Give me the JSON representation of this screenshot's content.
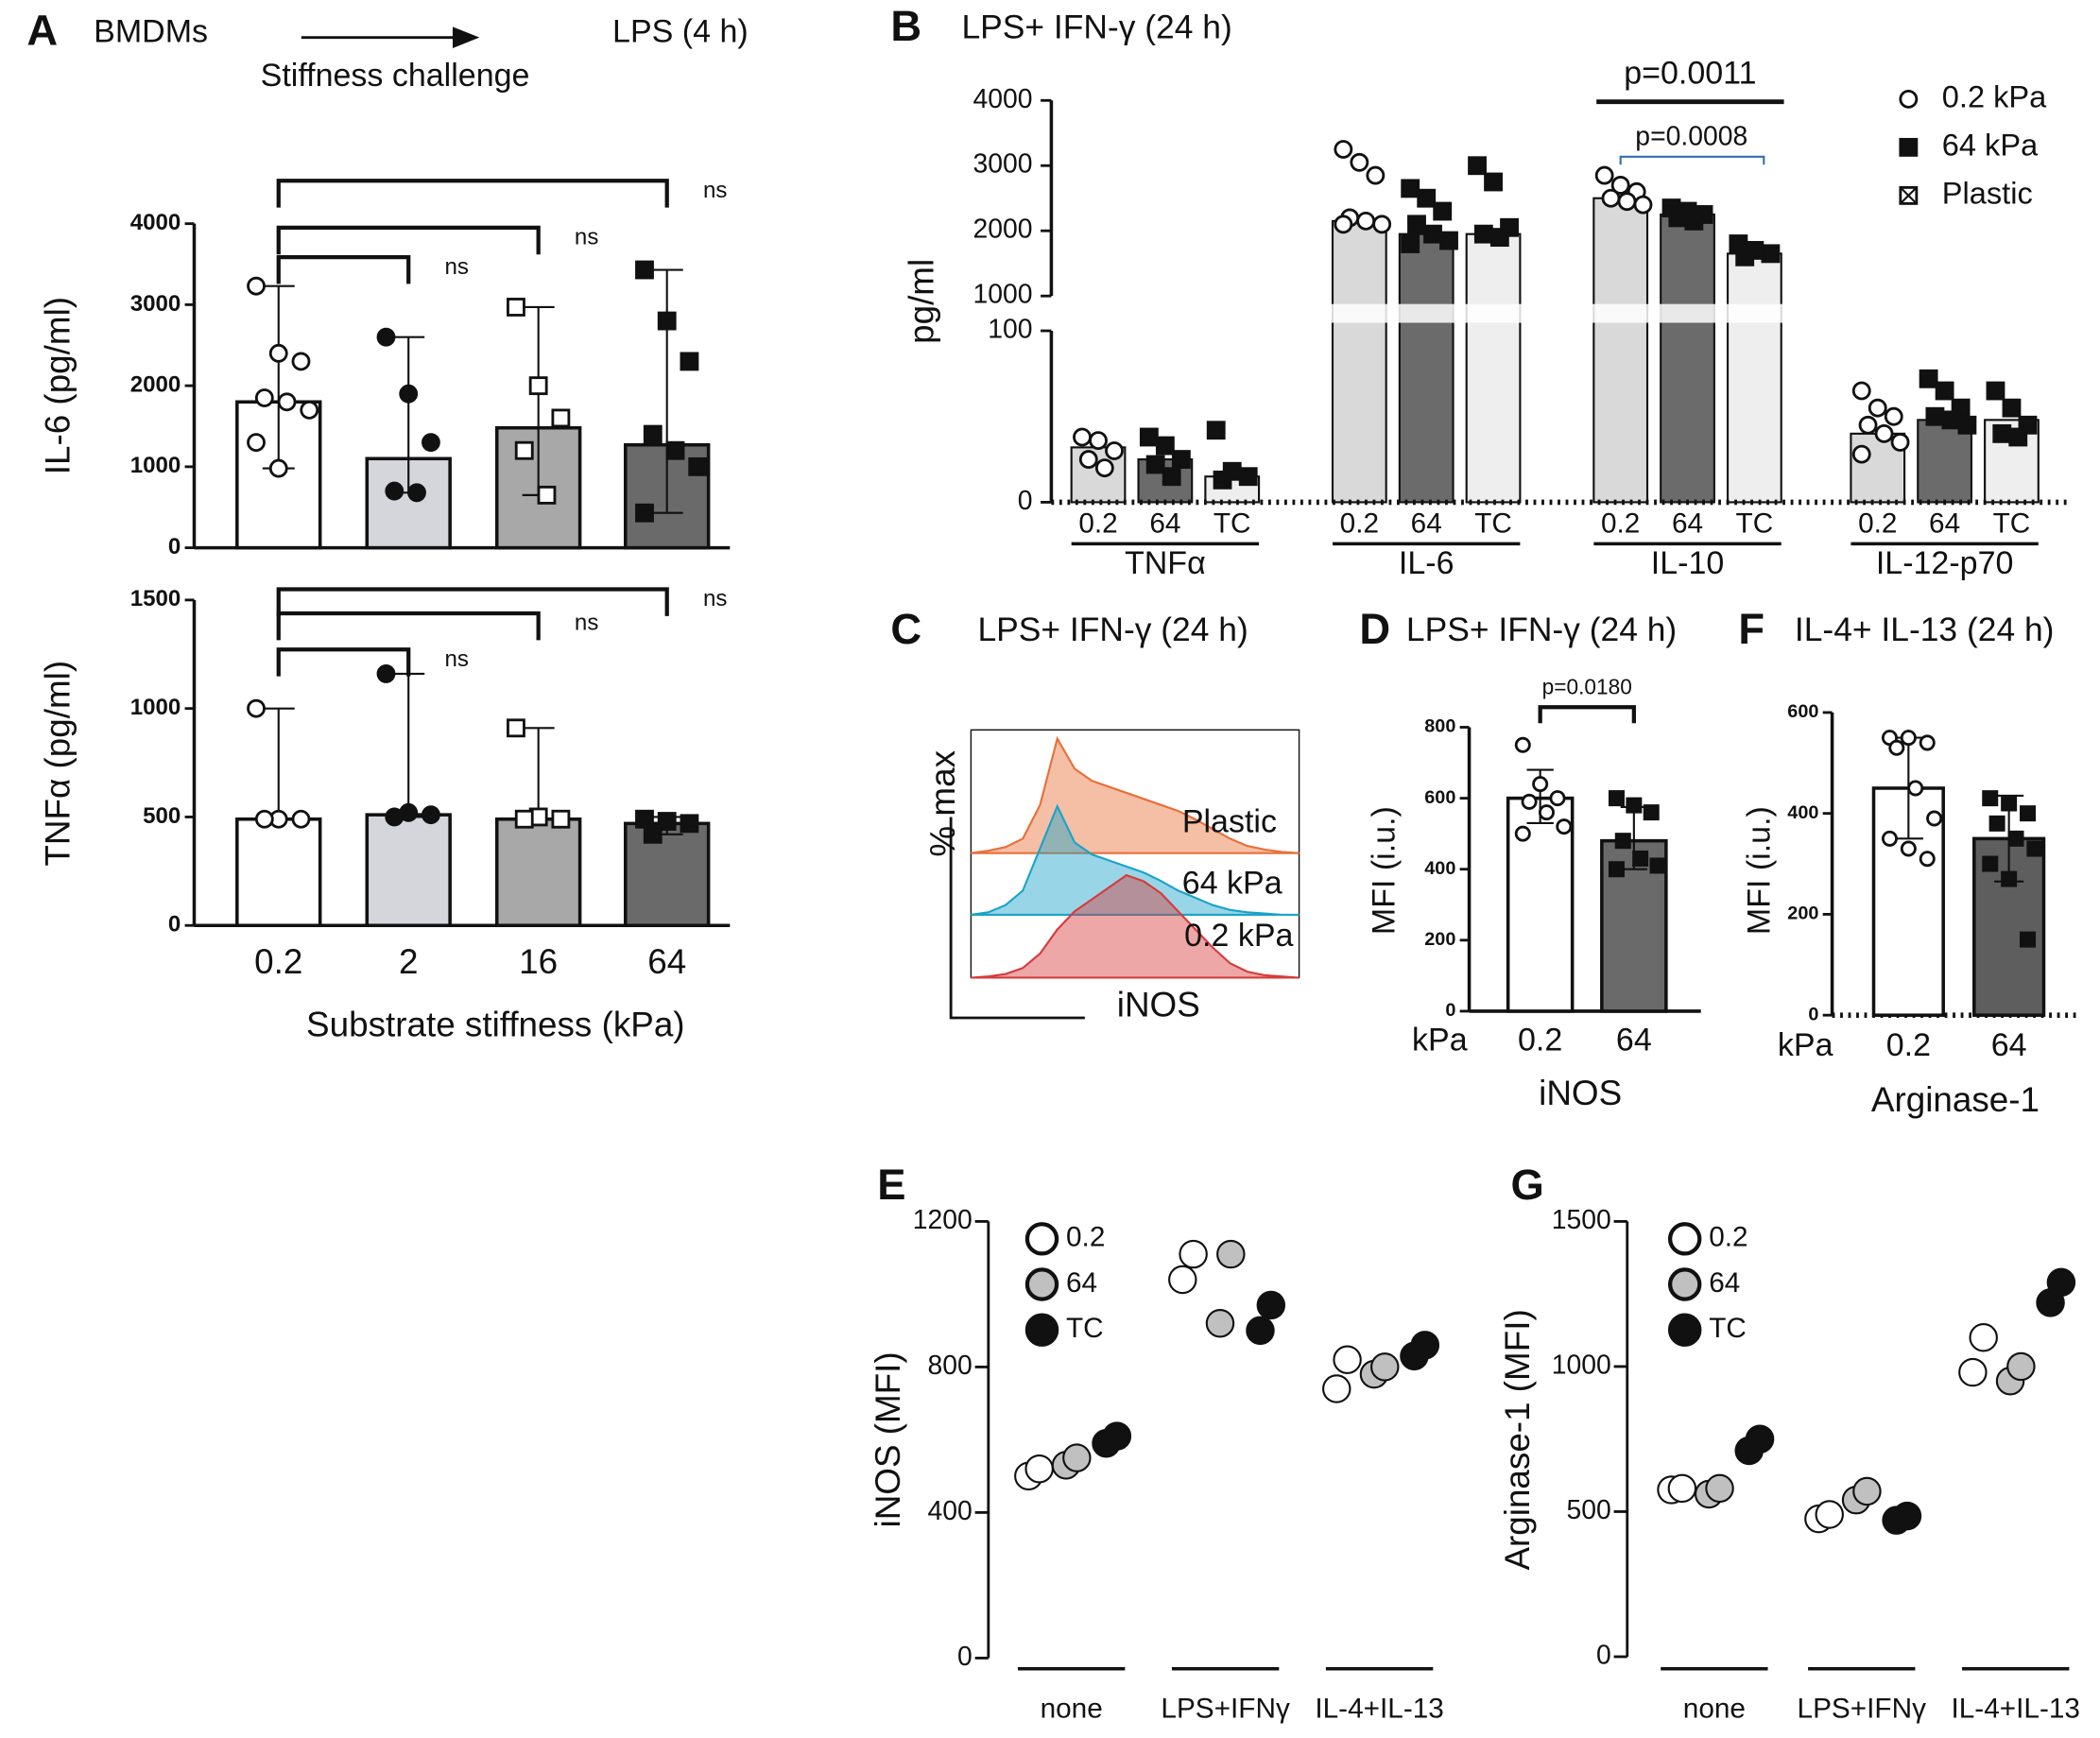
{
  "chart_data": [
    {
      "type": "bar",
      "panel": "A",
      "header": [
        "BMDMs",
        "Stiffness challenge",
        "LPS (4 h)"
      ],
      "ylabel": "IL-6 (pg/ml)",
      "ylim": [
        0,
        4000
      ],
      "yticks": [
        0,
        1000,
        2000,
        3000,
        4000
      ],
      "values": [
        1800,
        1100,
        1480,
        1270
      ],
      "error_low": [
        980,
        680,
        650,
        430
      ],
      "error_high": [
        3230,
        2600,
        2970,
        3430
      ],
      "points": [
        [
          3230,
          2400,
          2300,
          1850,
          1800,
          1700,
          1300,
          980
        ],
        [
          2600,
          1900,
          1300,
          700,
          680
        ],
        [
          2970,
          2000,
          1600,
          1200,
          650
        ],
        [
          3430,
          2800,
          2300,
          1400,
          1200,
          1000,
          430
        ]
      ],
      "colors": [
        "#ffffff",
        "#d4d6dc",
        "#a8a8a8",
        "#6a6a6a"
      ],
      "markers": [
        "circle-open",
        "circle-filled",
        "square-open",
        "square-filled"
      ],
      "comparisons": [
        {
          "between": [
            "0.2",
            "2"
          ],
          "label": "ns"
        },
        {
          "between": [
            "0.2",
            "16"
          ],
          "label": "ns"
        },
        {
          "between": [
            "0.2",
            "64"
          ],
          "label": "ns"
        }
      ]
    },
    {
      "type": "bar",
      "ylabel": "TNFα (pg/ml)",
      "xlabel": "Substrate stiffness (kPa)",
      "categories": [
        "0.2",
        "2",
        "16",
        "64"
      ],
      "ylim": [
        0,
        1500
      ],
      "yticks": [
        0,
        500,
        1000,
        1500
      ],
      "values": [
        490,
        510,
        490,
        470
      ],
      "error_low": [
        490,
        500,
        490,
        420
      ],
      "error_high": [
        1000,
        1160,
        910,
        500
      ],
      "points": [
        [
          1000,
          490,
          490,
          490
        ],
        [
          1160,
          520,
          510,
          500
        ],
        [
          910,
          500,
          490,
          490
        ],
        [
          490,
          480,
          470,
          420
        ]
      ],
      "colors": [
        "#ffffff",
        "#d4d6dc",
        "#a8a8a8",
        "#6a6a6a"
      ],
      "markers": [
        "circle-open",
        "circle-filled",
        "square-open",
        "square-filled"
      ],
      "comparisons": [
        {
          "between": [
            "0.2",
            "2"
          ],
          "label": "ns"
        },
        {
          "between": [
            "0.2",
            "16"
          ],
          "label": "ns"
        },
        {
          "between": [
            "0.2",
            "64"
          ],
          "label": "ns"
        }
      ]
    },
    {
      "type": "grouped_bar_broken",
      "panel": "B",
      "title": "LPS+ IFN-γ (24 h)",
      "ylabel": "pg/ml",
      "groups": [
        "TNFα",
        "IL-6",
        "IL-10",
        "IL-12-p70"
      ],
      "subcategories": [
        "0.2",
        "64",
        "TC"
      ],
      "ylim": [
        0,
        4000
      ],
      "axis_break": [
        100,
        1000
      ],
      "yticks": [
        0,
        100,
        1000,
        2000,
        3000,
        4000
      ],
      "series": [
        {
          "name": "0.2 kPa",
          "color": "#d9d9d9",
          "marker": "circle-open",
          "legend_marker": "circle-open",
          "values": [
            32,
            2150,
            2500,
            40
          ],
          "points": [
            [
              38,
              36,
              30,
              25,
              20
            ],
            [
              3250,
              3050,
              2850,
              2200,
              2150,
              2100,
              2100
            ],
            [
              2850,
              2700,
              2600,
              2500,
              2450,
              2400
            ],
            [
              65,
              55,
              50,
              45,
              40,
              35,
              28
            ]
          ]
        },
        {
          "name": "64 kPa",
          "color": "#6b6b6b",
          "marker": "square-filled",
          "legend_marker": "square-filled",
          "values": [
            25,
            1950,
            2250,
            48
          ],
          "points": [
            [
              38,
              33,
              25,
              22,
              15
            ],
            [
              2650,
              2500,
              2300,
              2100,
              1950,
              1850,
              1800
            ],
            [
              2350,
              2300,
              2250,
              2200,
              2150
            ],
            [
              72,
              65,
              55,
              50,
              48,
              45
            ]
          ]
        },
        {
          "name": "Plastic",
          "color": "#eeeeee",
          "marker": "square-filled",
          "legend_marker": "box-cross",
          "values": [
            15,
            1950,
            1650,
            48
          ],
          "points": [
            [
              42,
              18,
              15,
              13
            ],
            [
              3000,
              2750,
              2050,
              1950,
              1900
            ],
            [
              1800,
              1700,
              1650,
              1600
            ],
            [
              65,
              55,
              45,
              40,
              38
            ]
          ]
        }
      ],
      "annotations": [
        {
          "text": "p=0.0011",
          "color": "#111111"
        },
        {
          "text": "p=0.0008",
          "color": "#2f6fb5"
        }
      ]
    },
    {
      "type": "histogram_overlay",
      "panel": "C",
      "title": "LPS+ IFN-γ (24 h)",
      "xlabel": "iNOS",
      "ylabel": "% max",
      "ylim": [
        0,
        100
      ],
      "series": [
        {
          "name": "Plastic",
          "color": "#e8703a",
          "values": [
            0,
            2,
            5,
            12,
            40,
            95,
            70,
            60,
            55,
            50,
            45,
            40,
            35,
            28,
            20,
            12,
            6,
            3,
            1,
            0
          ]
        },
        {
          "name": "64 kPa",
          "color": "#1aa3c9",
          "values": [
            0,
            2,
            8,
            20,
            55,
            90,
            60,
            50,
            45,
            40,
            35,
            28,
            20,
            14,
            8,
            4,
            2,
            1,
            0,
            0
          ]
        },
        {
          "name": "0.2 kPa",
          "color": "#d63c3c",
          "values": [
            0,
            1,
            3,
            8,
            20,
            40,
            55,
            65,
            75,
            85,
            80,
            70,
            55,
            40,
            25,
            12,
            5,
            2,
            1,
            0
          ]
        }
      ]
    },
    {
      "type": "bar",
      "panel": "D",
      "title": "LPS+ IFN-γ (24 h)",
      "ylabel": "MFI (i.u.)",
      "x_prefix": "kPa",
      "categories": [
        "0.2",
        "64"
      ],
      "xlabel": "iNOS",
      "ylim": [
        0,
        800
      ],
      "yticks": [
        0,
        200,
        400,
        600,
        800
      ],
      "values": [
        600,
        480
      ],
      "error_low": [
        530,
        400
      ],
      "error_high": [
        680,
        575
      ],
      "points": [
        [
          750,
          640,
          600,
          590,
          560,
          520,
          500
        ],
        [
          600,
          580,
          560,
          480,
          430,
          410,
          400
        ]
      ],
      "colors": [
        "#ffffff",
        "#6a6a6a"
      ],
      "markers": [
        "circle-open",
        "square-filled"
      ],
      "comparisons": [
        {
          "between": [
            "0.2",
            "64"
          ],
          "label": "p=0.0180"
        }
      ]
    },
    {
      "type": "bar",
      "panel": "F",
      "title": "IL-4+ IL-13 (24 h)",
      "ylabel": "MFI (i.u.)",
      "x_prefix": "kPa",
      "categories": [
        "0.2",
        "64"
      ],
      "xlabel": "Arginase-1",
      "ylim": [
        0,
        600
      ],
      "yticks": [
        0,
        200,
        400,
        600
      ],
      "values": [
        450,
        350
      ],
      "error_low": [
        350,
        265
      ],
      "error_high": [
        550,
        435
      ],
      "points": [
        [
          550,
          550,
          540,
          530,
          450,
          390,
          350,
          330,
          310
        ],
        [
          430,
          420,
          400,
          380,
          350,
          330,
          300,
          270,
          150
        ]
      ],
      "colors": [
        "#ffffff",
        "#5e5e5e"
      ],
      "markers": [
        "circle-open",
        "square-filled"
      ]
    },
    {
      "type": "dot",
      "panel": "E",
      "ylabel": "iNOS (MFI)",
      "groups": [
        "none",
        "LPS+IFNγ",
        "IL-4+IL-13"
      ],
      "ylim": [
        0,
        1200
      ],
      "yticks": [
        0,
        400,
        800,
        1200
      ],
      "series": [
        {
          "name": "0.2",
          "color": "#ffffff",
          "values": [
            [
              500,
              520
            ],
            [
              1040,
              1110
            ],
            [
              740,
              820
            ]
          ]
        },
        {
          "name": "64",
          "color": "#c0c0c0",
          "values": [
            [
              530,
              550
            ],
            [
              920,
              1110
            ],
            [
              780,
              800
            ]
          ]
        },
        {
          "name": "TC",
          "color": "#111111",
          "values": [
            [
              590,
              610
            ],
            [
              900,
              970
            ],
            [
              830,
              860
            ]
          ]
        }
      ]
    },
    {
      "type": "dot",
      "panel": "G",
      "ylabel": "Arginase-1 (MFI)",
      "groups": [
        "none",
        "LPS+IFNγ",
        "IL-4+IL-13"
      ],
      "ylim": [
        0,
        1500
      ],
      "yticks": [
        0,
        500,
        1000,
        1500
      ],
      "series": [
        {
          "name": "0.2",
          "color": "#ffffff",
          "values": [
            [
              575,
              580
            ],
            [
              475,
              490
            ],
            [
              980,
              1100
            ]
          ]
        },
        {
          "name": "64",
          "color": "#c0c0c0",
          "values": [
            [
              560,
              580
            ],
            [
              540,
              570
            ],
            [
              950,
              1000
            ]
          ]
        },
        {
          "name": "TC",
          "color": "#111111",
          "values": [
            [
              710,
              750
            ],
            [
              470,
              485
            ],
            [
              1220,
              1290
            ]
          ]
        }
      ]
    }
  ]
}
